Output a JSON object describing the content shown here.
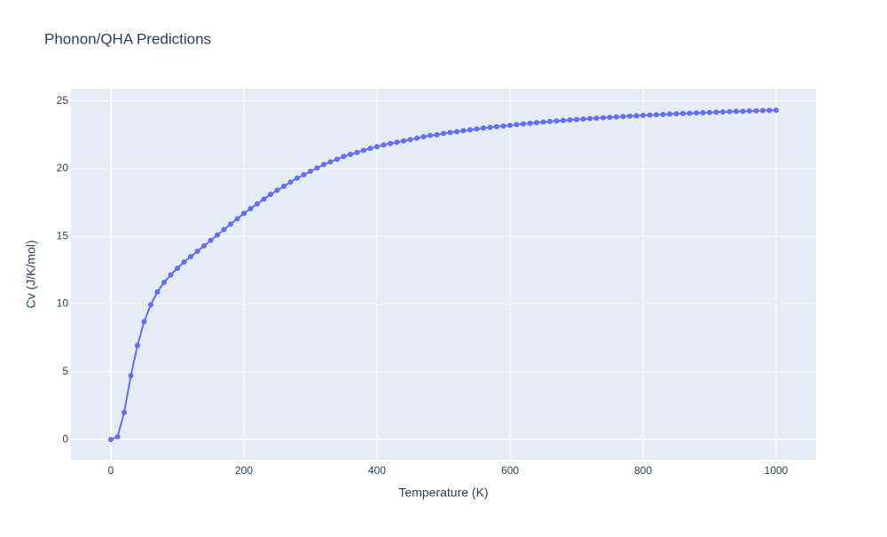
{
  "chart_data": {
    "type": "line",
    "title": "Phonon/QHA Predictions",
    "x_label": "Temperature (K)",
    "y_label": "Cv (J/K/mol)",
    "x": [
      0,
      10,
      20,
      30,
      40,
      50,
      60,
      70,
      80,
      90,
      100,
      110,
      120,
      130,
      140,
      150,
      160,
      170,
      180,
      190,
      200,
      210,
      220,
      230,
      240,
      250,
      260,
      270,
      280,
      290,
      300,
      310,
      320,
      330,
      340,
      350,
      360,
      370,
      380,
      390,
      400,
      410,
      420,
      430,
      440,
      450,
      460,
      470,
      480,
      490,
      500,
      510,
      520,
      530,
      540,
      550,
      560,
      570,
      580,
      590,
      600,
      610,
      620,
      630,
      640,
      650,
      660,
      670,
      680,
      690,
      700,
      710,
      720,
      730,
      740,
      750,
      760,
      770,
      780,
      790,
      800,
      810,
      820,
      830,
      840,
      850,
      860,
      870,
      880,
      890,
      900,
      910,
      920,
      930,
      940,
      950,
      960,
      970,
      980,
      990,
      1000
    ],
    "values": [
      0,
      0.2,
      2.0,
      4.7,
      6.95,
      8.7,
      9.95,
      10.9,
      11.6,
      12.15,
      12.65,
      13.1,
      13.5,
      13.9,
      14.3,
      14.7,
      15.1,
      15.5,
      15.9,
      16.3,
      16.7,
      17.05,
      17.4,
      17.75,
      18.1,
      18.4,
      18.7,
      19.0,
      19.3,
      19.55,
      19.8,
      20.05,
      20.3,
      20.5,
      20.7,
      20.9,
      21.05,
      21.2,
      21.35,
      21.5,
      21.62,
      21.75,
      21.85,
      21.95,
      22.05,
      22.15,
      22.25,
      22.35,
      22.45,
      22.5,
      22.6,
      22.67,
      22.73,
      22.8,
      22.87,
      22.93,
      23.0,
      23.05,
      23.1,
      23.15,
      23.2,
      23.25,
      23.3,
      23.35,
      23.4,
      23.44,
      23.48,
      23.52,
      23.56,
      23.6,
      23.63,
      23.66,
      23.7,
      23.73,
      23.76,
      23.79,
      23.82,
      23.85,
      23.88,
      23.9,
      23.93,
      23.96,
      23.98,
      24.0,
      24.03,
      24.05,
      24.07,
      24.09,
      24.11,
      24.13,
      24.15,
      24.17,
      24.19,
      24.21,
      24.23,
      24.24,
      24.26,
      24.27,
      24.29,
      24.3,
      24.32
    ],
    "color": "#636efa",
    "xlim": [
      -60,
      1060
    ],
    "ylim": [
      -1.5,
      25.9
    ],
    "xticks": [
      0,
      200,
      400,
      600,
      800,
      1000
    ],
    "yticks": [
      0,
      5,
      10,
      15,
      20,
      25
    ],
    "grid": true
  }
}
